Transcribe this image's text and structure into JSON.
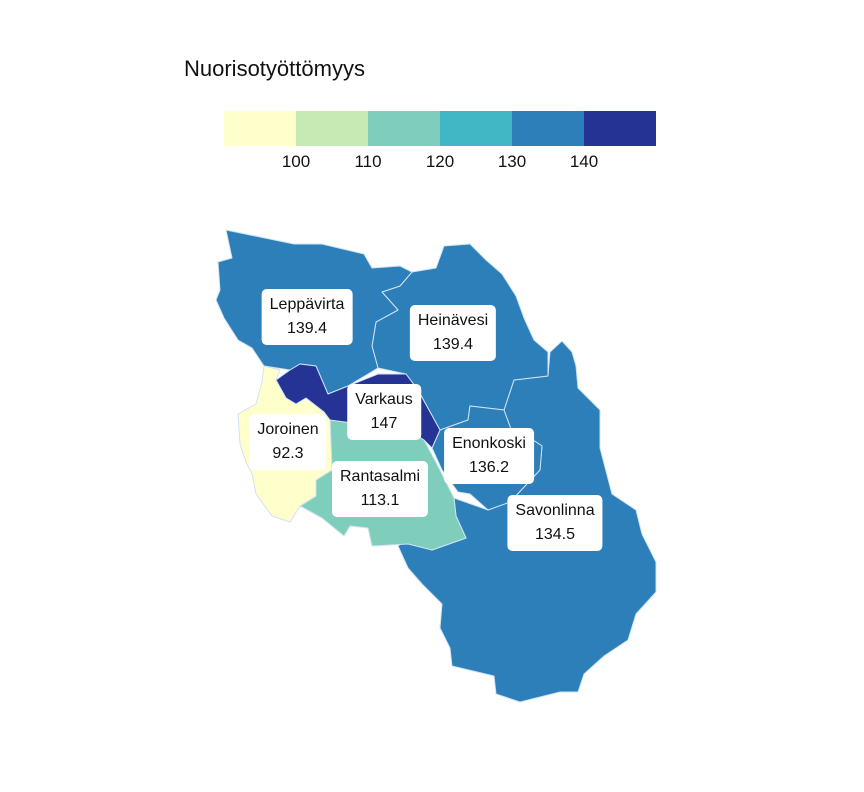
{
  "legend": {
    "title": "Nuorisotyöttömyys",
    "bins": [
      {
        "color": "#ffffcc"
      },
      {
        "color": "#c7e9b4"
      },
      {
        "color": "#7fcdbb"
      },
      {
        "color": "#41b6c4"
      },
      {
        "color": "#2c7fb8"
      },
      {
        "color": "#253494"
      }
    ],
    "ticks": [
      "100",
      "110",
      "120",
      "130",
      "140"
    ]
  },
  "regions": [
    {
      "id": "leppavirta",
      "name": "Leppävirta",
      "value": "139.4",
      "color": "#2c7fb8"
    },
    {
      "id": "heinavesi",
      "name": "Heinävesi",
      "value": "139.4",
      "color": "#2c7fb8"
    },
    {
      "id": "varkaus",
      "name": "Varkaus",
      "value": "147",
      "color": "#253494"
    },
    {
      "id": "joroinen",
      "name": "Joroinen",
      "value": "92.3",
      "color": "#ffffcc"
    },
    {
      "id": "rantasalmi",
      "name": "Rantasalmi",
      "value": "113.1",
      "color": "#7fcdbb"
    },
    {
      "id": "enonkoski",
      "name": "Enonkoski",
      "value": "136.2",
      "color": "#2c7fb8"
    },
    {
      "id": "savonlinna",
      "name": "Savonlinna",
      "value": "134.5",
      "color": "#2c7fb8"
    }
  ]
}
